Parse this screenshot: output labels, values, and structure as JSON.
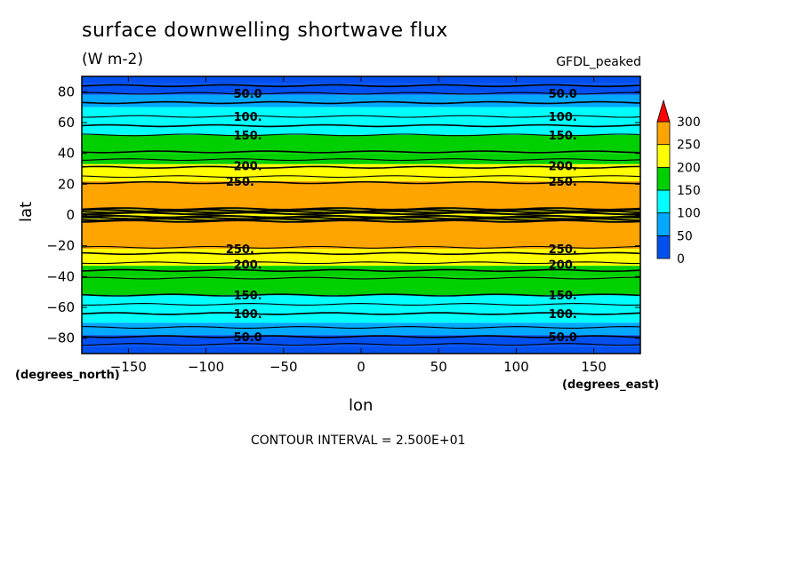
{
  "chart_data": {
    "type": "heatmap",
    "title": "surface downwelling shortwave flux",
    "units": "(W m-2)",
    "dataset": "GFDL_peaked",
    "xlabel": "lon",
    "ylabel": "lat",
    "x_units": "(degrees_east)",
    "y_units": "(degrees_north)",
    "xlim": [
      -180,
      180
    ],
    "ylim": [
      -90,
      90
    ],
    "x_ticks": [
      -150,
      -100,
      -50,
      0,
      50,
      100,
      150
    ],
    "y_ticks": [
      80,
      60,
      40,
      20,
      0,
      -20,
      -40,
      -60,
      -80
    ],
    "levels": [
      0,
      50,
      100,
      150,
      200,
      250,
      300
    ],
    "level_colors": [
      "#0050f0",
      "#00a8ff",
      "#00ffff",
      "#00d000",
      "#ffff00",
      "#ffa500",
      "#ff0000"
    ],
    "colorbar_labels": [
      "300",
      "250",
      "200",
      "150",
      "100",
      "50",
      "0"
    ],
    "latitude_bands": [
      {
        "lat": [
          85,
          90
        ],
        "value": 25
      },
      {
        "lat": [
          78,
          85
        ],
        "value": 45
      },
      {
        "lat": [
          70,
          78
        ],
        "value": 75
      },
      {
        "lat": [
          64,
          70
        ],
        "value": 100
      },
      {
        "lat": [
          52,
          64
        ],
        "value": 125
      },
      {
        "lat": [
          40,
          52
        ],
        "value": 165
      },
      {
        "lat": [
          33,
          40
        ],
        "value": 185
      },
      {
        "lat": [
          22,
          33
        ],
        "value": 225
      },
      {
        "lat": [
          4,
          22
        ],
        "value": 265
      },
      {
        "lat": [
          2,
          4
        ],
        "value": 240
      },
      {
        "lat": [
          -2,
          2
        ],
        "value": 210
      },
      {
        "lat": [
          -4,
          -2
        ],
        "value": 240
      },
      {
        "lat": [
          -22,
          -4
        ],
        "value": 265
      },
      {
        "lat": [
          -33,
          -22
        ],
        "value": 225
      },
      {
        "lat": [
          -40,
          -33
        ],
        "value": 185
      },
      {
        "lat": [
          -52,
          -40
        ],
        "value": 165
      },
      {
        "lat": [
          -64,
          -52
        ],
        "value": 125
      },
      {
        "lat": [
          -70,
          -64
        ],
        "value": 100
      },
      {
        "lat": [
          -78,
          -70
        ],
        "value": 75
      },
      {
        "lat": [
          -85,
          -78
        ],
        "value": 45
      },
      {
        "lat": [
          -90,
          -85
        ],
        "value": 25
      }
    ],
    "contour_lats": [
      84,
      79,
      73,
      64,
      58,
      52,
      41,
      36,
      31,
      25,
      21,
      4,
      3,
      2,
      1,
      -1,
      -2,
      -3,
      -4,
      -21,
      -25,
      -31,
      -36,
      -41,
      -52,
      -58,
      -64,
      -73,
      -79,
      -84
    ],
    "contour_labels": [
      {
        "text": "50.0",
        "lat": 79,
        "lon": [
          -73,
          130
        ]
      },
      {
        "text": "100.",
        "lat": 64,
        "lon": [
          -73,
          130
        ]
      },
      {
        "text": "150.",
        "lat": 52,
        "lon": [
          -73,
          130
        ]
      },
      {
        "text": "200.",
        "lat": 32,
        "lon": [
          -73,
          130
        ]
      },
      {
        "text": "250.",
        "lat": 22,
        "lon": [
          -78,
          130
        ]
      },
      {
        "text": "250.",
        "lat": -22,
        "lon": [
          -78,
          130
        ]
      },
      {
        "text": "200.",
        "lat": -32,
        "lon": [
          -73,
          130
        ]
      },
      {
        "text": "150.",
        "lat": -52,
        "lon": [
          -73,
          130
        ]
      },
      {
        "text": "100.",
        "lat": -64,
        "lon": [
          -73,
          130
        ]
      },
      {
        "text": "50.0",
        "lat": -79,
        "lon": [
          -73,
          130
        ]
      }
    ],
    "contour_interval_text": "CONTOUR INTERVAL = 2.500E+01"
  }
}
